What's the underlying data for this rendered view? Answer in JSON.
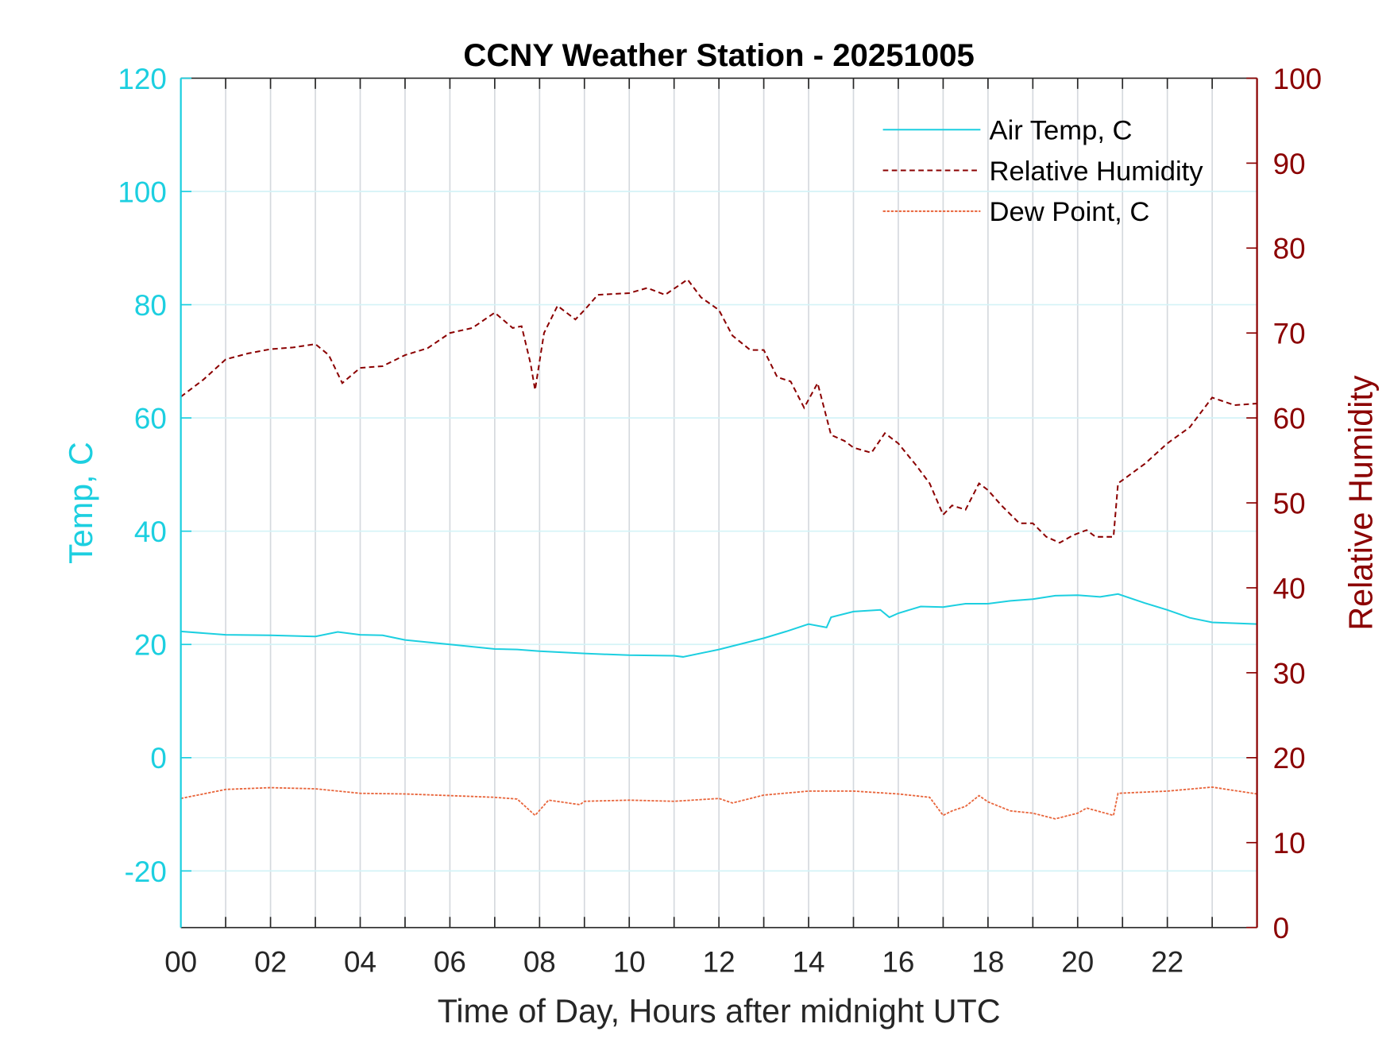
{
  "chart_data": {
    "type": "line",
    "title": "CCNY Weather Station - 20251005",
    "xlabel": "Time of Day, Hours after midnight UTC",
    "ylabel_left": "Temp, C",
    "ylabel_right": "Relative Humidity",
    "xlim": [
      0,
      24
    ],
    "ylim_left": [
      -30,
      120
    ],
    "ylim_right": [
      0,
      100
    ],
    "x_ticks": [
      0,
      2,
      4,
      6,
      8,
      10,
      12,
      14,
      16,
      18,
      20,
      22
    ],
    "x_tick_labels": [
      "00",
      "02",
      "04",
      "06",
      "08",
      "10",
      "12",
      "14",
      "16",
      "18",
      "20",
      "22"
    ],
    "y_left_ticks": [
      -20,
      0,
      20,
      40,
      60,
      80,
      100,
      120
    ],
    "y_left_tick_labels": [
      "-20",
      "0",
      "20",
      "40",
      "60",
      "80",
      "100",
      "120"
    ],
    "y_right_ticks": [
      0,
      10,
      20,
      30,
      40,
      50,
      60,
      70,
      80,
      90,
      100
    ],
    "y_right_tick_labels": [
      "0",
      "10",
      "20",
      "30",
      "40",
      "50",
      "60",
      "70",
      "80",
      "90",
      "100"
    ],
    "grid": true,
    "legend_position": "top-right",
    "colors": {
      "left_axis": "#1ccfe0",
      "right_axis": "#8b0000",
      "air_temp": "#1ccfe0",
      "rh": "#8b0000",
      "dew_point": "#e8643a"
    },
    "series": [
      {
        "name": "Air Temp, C",
        "axis": "left",
        "style": "solid",
        "x": [
          0,
          1,
          2,
          3,
          3.5,
          4,
          4.5,
          5,
          6,
          7,
          7.5,
          8,
          9,
          10,
          11,
          11.2,
          12,
          13,
          13.5,
          14,
          14.4,
          14.5,
          15,
          15.6,
          15.8,
          16,
          16.5,
          17,
          17.5,
          18,
          18.5,
          19,
          19.5,
          20,
          20.5,
          20.9,
          21.5,
          22,
          22.5,
          23,
          24
        ],
        "y": [
          22.3,
          21.7,
          21.6,
          21.4,
          22.2,
          21.7,
          21.6,
          20.8,
          20,
          19.2,
          19.1,
          18.8,
          18.4,
          18.1,
          18,
          17.8,
          19.1,
          21.1,
          22.3,
          23.6,
          23,
          24.8,
          25.8,
          26.1,
          24.8,
          25.5,
          26.7,
          26.6,
          27.2,
          27.2,
          27.7,
          28,
          28.6,
          28.7,
          28.4,
          28.9,
          27.3,
          26.1,
          24.7,
          23.9,
          23.6
        ]
      },
      {
        "name": "Relative Humidity",
        "axis": "right",
        "style": "dashed",
        "x": [
          0,
          0.5,
          1,
          1.5,
          2,
          2.5,
          3,
          3.3,
          3.6,
          4,
          4.5,
          5,
          5.5,
          6,
          6.5,
          7,
          7.4,
          7.6,
          7.8,
          7.9,
          8.1,
          8.4,
          8.8,
          9,
          9.3,
          10,
          10.4,
          10.8,
          11.3,
          11.6,
          12,
          12.3,
          12.7,
          13,
          13.3,
          13.6,
          13.9,
          14.2,
          14.5,
          14.8,
          15,
          15.4,
          15.7,
          16,
          16.4,
          16.7,
          17,
          17.2,
          17.5,
          17.8,
          18,
          18.3,
          18.7,
          19,
          19.3,
          19.6,
          19.9,
          20.2,
          20.4,
          20.8,
          20.9,
          21.5,
          22,
          22.5,
          23,
          23.5,
          24
        ],
        "y": [
          62.5,
          64.5,
          66.9,
          67.6,
          68.1,
          68.3,
          68.7,
          67.4,
          64.1,
          65.9,
          66.1,
          67.4,
          68.2,
          70,
          70.6,
          72.4,
          70.6,
          70.8,
          66.4,
          63.3,
          70,
          73.2,
          71.6,
          72.7,
          74.5,
          74.7,
          75.3,
          74.5,
          76.3,
          74.2,
          72.7,
          69.7,
          68,
          68,
          64.8,
          64.3,
          61.2,
          64.1,
          58,
          57.3,
          56.5,
          55.9,
          58.2,
          57,
          54.4,
          52.3,
          48.6,
          49.7,
          49.2,
          52.3,
          51.5,
          49.7,
          47.6,
          47.6,
          46,
          45.3,
          46.2,
          46.8,
          46,
          46,
          52.3,
          54.6,
          57,
          58.9,
          62.4,
          61.5,
          61.7
        ]
      },
      {
        "name": "Dew Point, C",
        "axis": "left",
        "style": "dotted",
        "x": [
          0,
          1,
          2,
          3,
          4,
          5,
          6,
          7,
          7.5,
          7.9,
          8.2,
          8.9,
          9,
          10,
          11,
          12,
          12.3,
          13,
          14,
          15,
          16,
          16.7,
          17,
          17.2,
          17.5,
          17.8,
          18,
          18.5,
          19,
          19.5,
          20,
          20.2,
          20.8,
          20.9,
          22,
          23,
          24
        ],
        "y": [
          -7.2,
          -5.6,
          -5.3,
          -5.5,
          -6.3,
          -6.4,
          -6.7,
          -7,
          -7.3,
          -10.2,
          -7.5,
          -8.3,
          -7.7,
          -7.5,
          -7.7,
          -7.2,
          -8,
          -6.6,
          -5.9,
          -5.9,
          -6.4,
          -7,
          -10.2,
          -9.4,
          -8.6,
          -6.7,
          -7.8,
          -9.4,
          -9.8,
          -10.8,
          -9.8,
          -8.9,
          -10.2,
          -6.3,
          -5.9,
          -5.2,
          -6.4
        ]
      }
    ]
  }
}
